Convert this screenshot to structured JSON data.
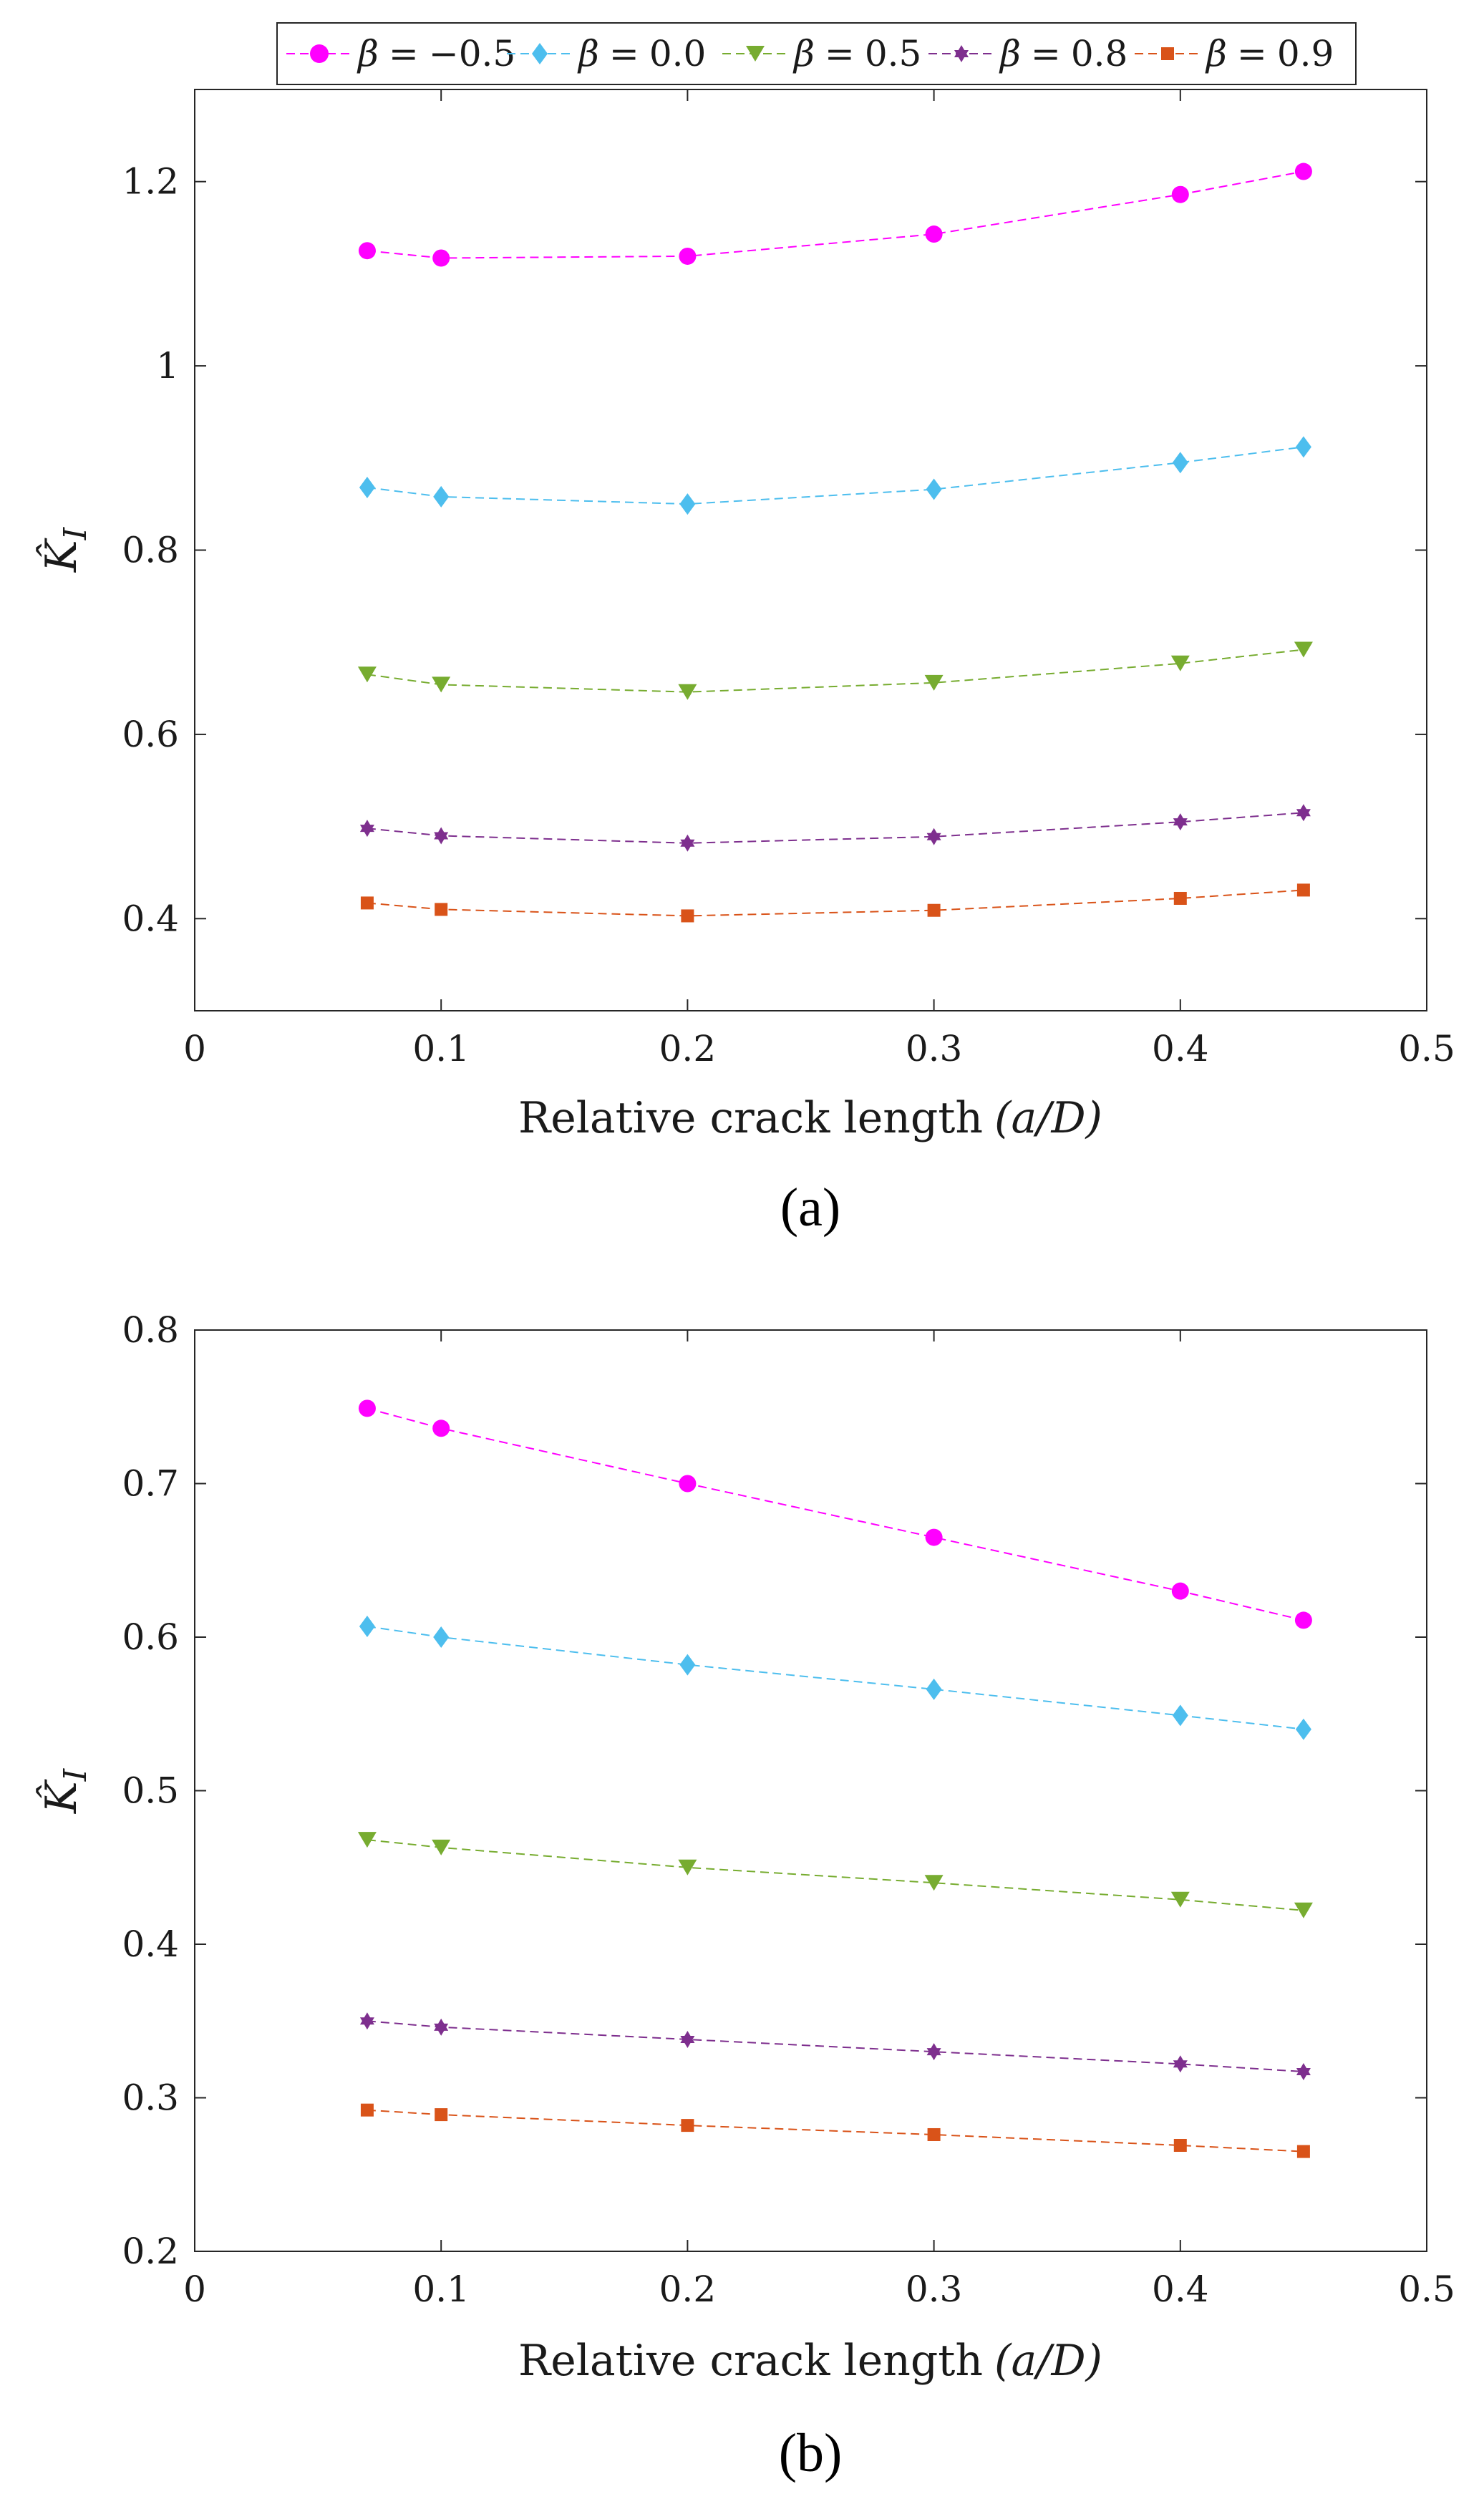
{
  "legend": [
    {
      "symbol": "β",
      "op": "=",
      "value": "−0.5"
    },
    {
      "symbol": "β",
      "op": "=",
      "value": "0.0"
    },
    {
      "symbol": "β",
      "op": "=",
      "value": "0.5"
    },
    {
      "symbol": "β",
      "op": "=",
      "value": "0.8"
    },
    {
      "symbol": "β",
      "op": "=",
      "value": "0.9"
    }
  ],
  "colors": {
    "s1": "#ff00ff",
    "s2": "#4dbeee",
    "s3": "#77ac30",
    "s4": "#7e2f8e",
    "s5": "#d95319"
  },
  "markers": [
    "circle",
    "diamond",
    "triangle-down",
    "hexagram",
    "square"
  ],
  "chart_data": [
    {
      "type": "line",
      "caption": "(a)",
      "xlabel": "Relative crack length",
      "xlabel_math": "(a/D)",
      "ylabel": "K̂",
      "ylabel_sub": "I",
      "xlim": [
        0,
        0.5
      ],
      "ylim": [
        0.3,
        1.3
      ],
      "xticks": [
        "0",
        "0.1",
        "0.2",
        "0.3",
        "0.4",
        "0.5"
      ],
      "xtick_values": [
        0,
        0.1,
        0.2,
        0.3,
        0.4,
        0.5
      ],
      "yticks": [
        "0.4",
        "0.6",
        "0.8",
        "1",
        "1.2"
      ],
      "ytick_values": [
        0.4,
        0.6,
        0.8,
        1.0,
        1.2
      ],
      "x": [
        0.07,
        0.1,
        0.2,
        0.3,
        0.4,
        0.45
      ],
      "series": [
        {
          "name": "β = −0.5",
          "values": [
            1.125,
            1.117,
            1.119,
            1.143,
            1.186,
            1.211
          ]
        },
        {
          "name": "β = 0.0",
          "values": [
            0.868,
            0.858,
            0.85,
            0.866,
            0.895,
            0.912
          ]
        },
        {
          "name": "β = 0.5",
          "values": [
            0.665,
            0.654,
            0.646,
            0.656,
            0.677,
            0.692
          ]
        },
        {
          "name": "β = 0.8",
          "values": [
            0.498,
            0.49,
            0.482,
            0.489,
            0.505,
            0.515
          ]
        },
        {
          "name": "β = 0.9",
          "values": [
            0.417,
            0.41,
            0.403,
            0.409,
            0.422,
            0.431
          ]
        }
      ]
    },
    {
      "type": "line",
      "caption": "(b)",
      "xlabel": "Relative crack length",
      "xlabel_math": "(a/D)",
      "ylabel": "K̂",
      "ylabel_sub": "I",
      "xlim": [
        0,
        0.5
      ],
      "ylim": [
        0.2,
        0.8
      ],
      "xticks": [
        "0",
        "0.1",
        "0.2",
        "0.3",
        "0.4",
        "0.5"
      ],
      "xtick_values": [
        0,
        0.1,
        0.2,
        0.3,
        0.4,
        0.5
      ],
      "yticks": [
        "0.2",
        "0.3",
        "0.4",
        "0.5",
        "0.6",
        "0.7",
        "0.8"
      ],
      "ytick_values": [
        0.2,
        0.3,
        0.4,
        0.5,
        0.6,
        0.7,
        0.8
      ],
      "x": [
        0.07,
        0.1,
        0.2,
        0.3,
        0.4,
        0.45
      ],
      "series": [
        {
          "name": "β = −0.5",
          "values": [
            0.749,
            0.736,
            0.7,
            0.665,
            0.63,
            0.611
          ]
        },
        {
          "name": "β = 0.0",
          "values": [
            0.607,
            0.6,
            0.582,
            0.566,
            0.549,
            0.54
          ]
        },
        {
          "name": "β = 0.5",
          "values": [
            0.468,
            0.463,
            0.45,
            0.44,
            0.429,
            0.422
          ]
        },
        {
          "name": "β = 0.8",
          "values": [
            0.35,
            0.346,
            0.338,
            0.33,
            0.322,
            0.317
          ]
        },
        {
          "name": "β = 0.9",
          "values": [
            0.292,
            0.289,
            0.282,
            0.276,
            0.269,
            0.265
          ]
        }
      ]
    }
  ]
}
